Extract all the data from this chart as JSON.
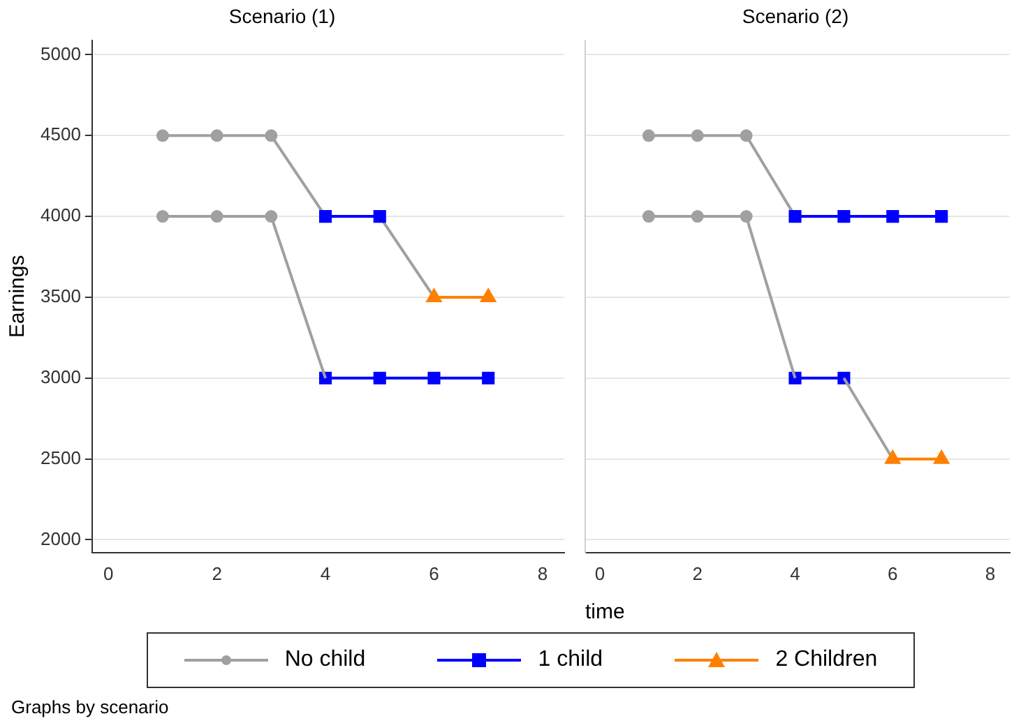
{
  "chart_data": [
    {
      "type": "line",
      "title": "Scenario (1)",
      "ylabel": "Earnings",
      "xlim": [
        -0.3,
        8.4
      ],
      "xticks": [
        0,
        2,
        4,
        6,
        8
      ],
      "ylim": [
        1920,
        5090
      ],
      "yticks": [
        2000,
        2500,
        3000,
        3500,
        4000,
        4500,
        5000
      ],
      "grid": "y",
      "legend": "bottom",
      "annotations": [
        "Graphs by scenario"
      ],
      "series": [
        {
          "name": "No child",
          "color": "#a0a0a0",
          "marker": "circle",
          "x": [
            1,
            2,
            3
          ],
          "values": [
            4500,
            4500,
            4500
          ]
        },
        {
          "color": "#a0a0a0",
          "marker": "circle",
          "x": [
            1,
            2,
            3
          ],
          "values": [
            4000,
            4000,
            4000
          ]
        },
        {
          "color": "#a0a0a0",
          "marker": "none",
          "x": [
            3,
            4
          ],
          "values": [
            4500,
            4000
          ]
        },
        {
          "color": "#a0a0a0",
          "marker": "none",
          "x": [
            5,
            6
          ],
          "values": [
            4000,
            3500
          ]
        },
        {
          "color": "#a0a0a0",
          "marker": "none",
          "x": [
            3,
            4
          ],
          "values": [
            4000,
            3000
          ]
        },
        {
          "name": "1 child",
          "color": "#0000ff",
          "marker": "square",
          "x": [
            4,
            5
          ],
          "values": [
            4000,
            4000
          ]
        },
        {
          "color": "#0000ff",
          "marker": "square",
          "x": [
            4,
            5,
            6,
            7
          ],
          "values": [
            3000,
            3000,
            3000,
            3000
          ]
        },
        {
          "name": "2 Children",
          "color": "#ff8000",
          "marker": "triangle",
          "x": [
            6,
            7
          ],
          "values": [
            3500,
            3500
          ]
        }
      ]
    },
    {
      "type": "line",
      "title": "Scenario (2)",
      "xlabel": "time",
      "xlim": [
        -0.3,
        8.4
      ],
      "xticks": [
        0,
        2,
        4,
        6,
        8
      ],
      "ylim": [
        1920,
        5090
      ],
      "yticks": [
        2000,
        2500,
        3000,
        3500,
        4000,
        4500,
        5000
      ],
      "grid": "y",
      "legend": "bottom",
      "tick_labels": "x",
      "series": [
        {
          "name": "No child",
          "color": "#a0a0a0",
          "marker": "circle",
          "x": [
            1,
            2,
            3
          ],
          "values": [
            4500,
            4500,
            4500
          ]
        },
        {
          "color": "#a0a0a0",
          "marker": "circle",
          "x": [
            1,
            2,
            3
          ],
          "values": [
            4000,
            4000,
            4000
          ]
        },
        {
          "color": "#a0a0a0",
          "marker": "none",
          "x": [
            3,
            4
          ],
          "values": [
            4500,
            4000
          ]
        },
        {
          "color": "#a0a0a0",
          "marker": "none",
          "x": [
            3,
            4
          ],
          "values": [
            4000,
            3000
          ]
        },
        {
          "color": "#a0a0a0",
          "marker": "none",
          "x": [
            5,
            6
          ],
          "values": [
            3000,
            2500
          ]
        },
        {
          "name": "1 child",
          "color": "#0000ff",
          "marker": "square",
          "x": [
            4,
            5,
            6,
            7
          ],
          "values": [
            4000,
            4000,
            4000,
            4000
          ]
        },
        {
          "color": "#0000ff",
          "marker": "square",
          "x": [
            4,
            5
          ],
          "values": [
            3000,
            3000
          ]
        },
        {
          "name": "2 Children",
          "color": "#ff8000",
          "marker": "triangle",
          "x": [
            6,
            7
          ],
          "values": [
            2500,
            2500
          ]
        }
      ]
    }
  ]
}
